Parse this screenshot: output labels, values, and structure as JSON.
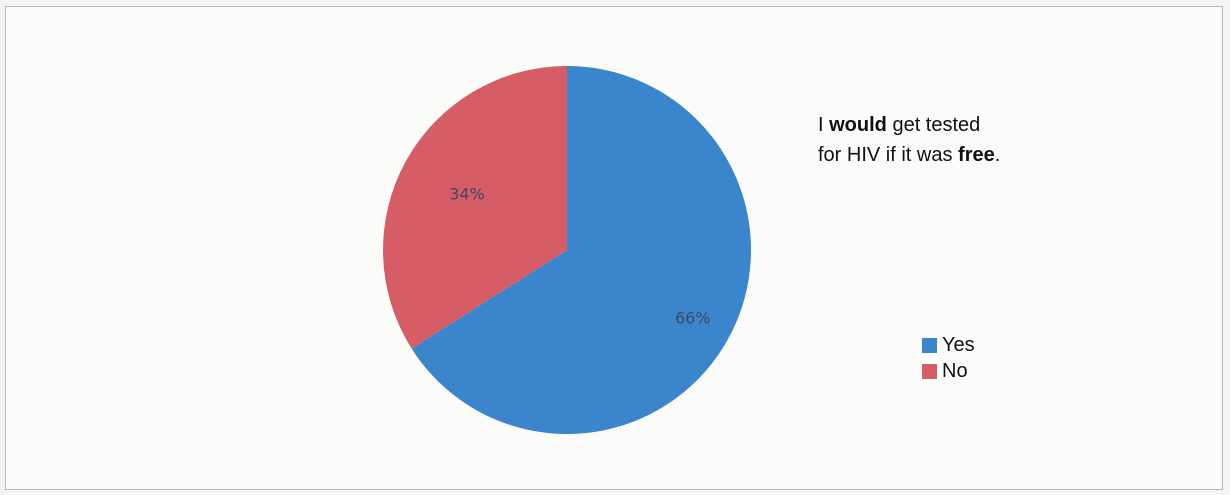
{
  "chart_data": {
    "type": "pie",
    "title_parts": [
      {
        "text": "I ",
        "bold": false
      },
      {
        "text": "would",
        "bold": true
      },
      {
        "text": " get tested for HIV if it was ",
        "bold": false
      },
      {
        "text": "free",
        "bold": true
      },
      {
        "text": ".",
        "bold": false
      }
    ],
    "slices": [
      {
        "label": "Yes",
        "value": 66,
        "data_label": "66%",
        "color": "#3a85cc"
      },
      {
        "label": "No",
        "value": 34,
        "data_label": "34%",
        "color": "#d65c66"
      }
    ],
    "legend_position": "right"
  }
}
